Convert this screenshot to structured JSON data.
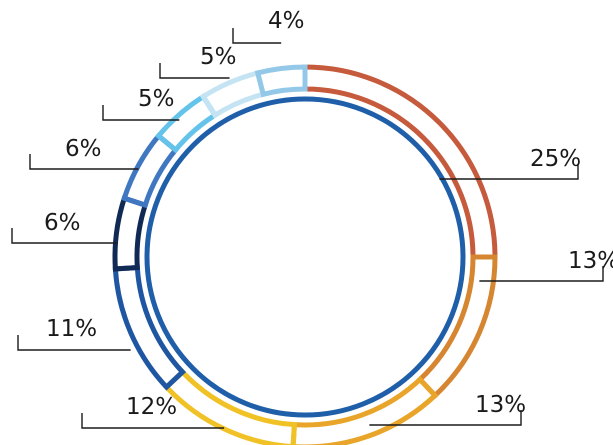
{
  "chart_data": {
    "type": "pie",
    "style": "segmented-ring",
    "title": "",
    "labels": [
      "25%",
      "13%",
      "13%",
      "12%",
      "11%",
      "6%",
      "6%",
      "5%",
      "5%",
      "4%"
    ],
    "values": [
      25,
      13,
      13,
      12,
      11,
      6,
      6,
      5,
      5,
      4
    ],
    "colors": [
      "#c65a3c",
      "#d68530",
      "#e8a52a",
      "#f1c226",
      "#1f56a1",
      "#102a55",
      "#3f77c1",
      "#64c3ea",
      "#c4e4f4",
      "#93c8e8"
    ],
    "inner_circle_color": "#1f5ea8",
    "legend": "none"
  }
}
